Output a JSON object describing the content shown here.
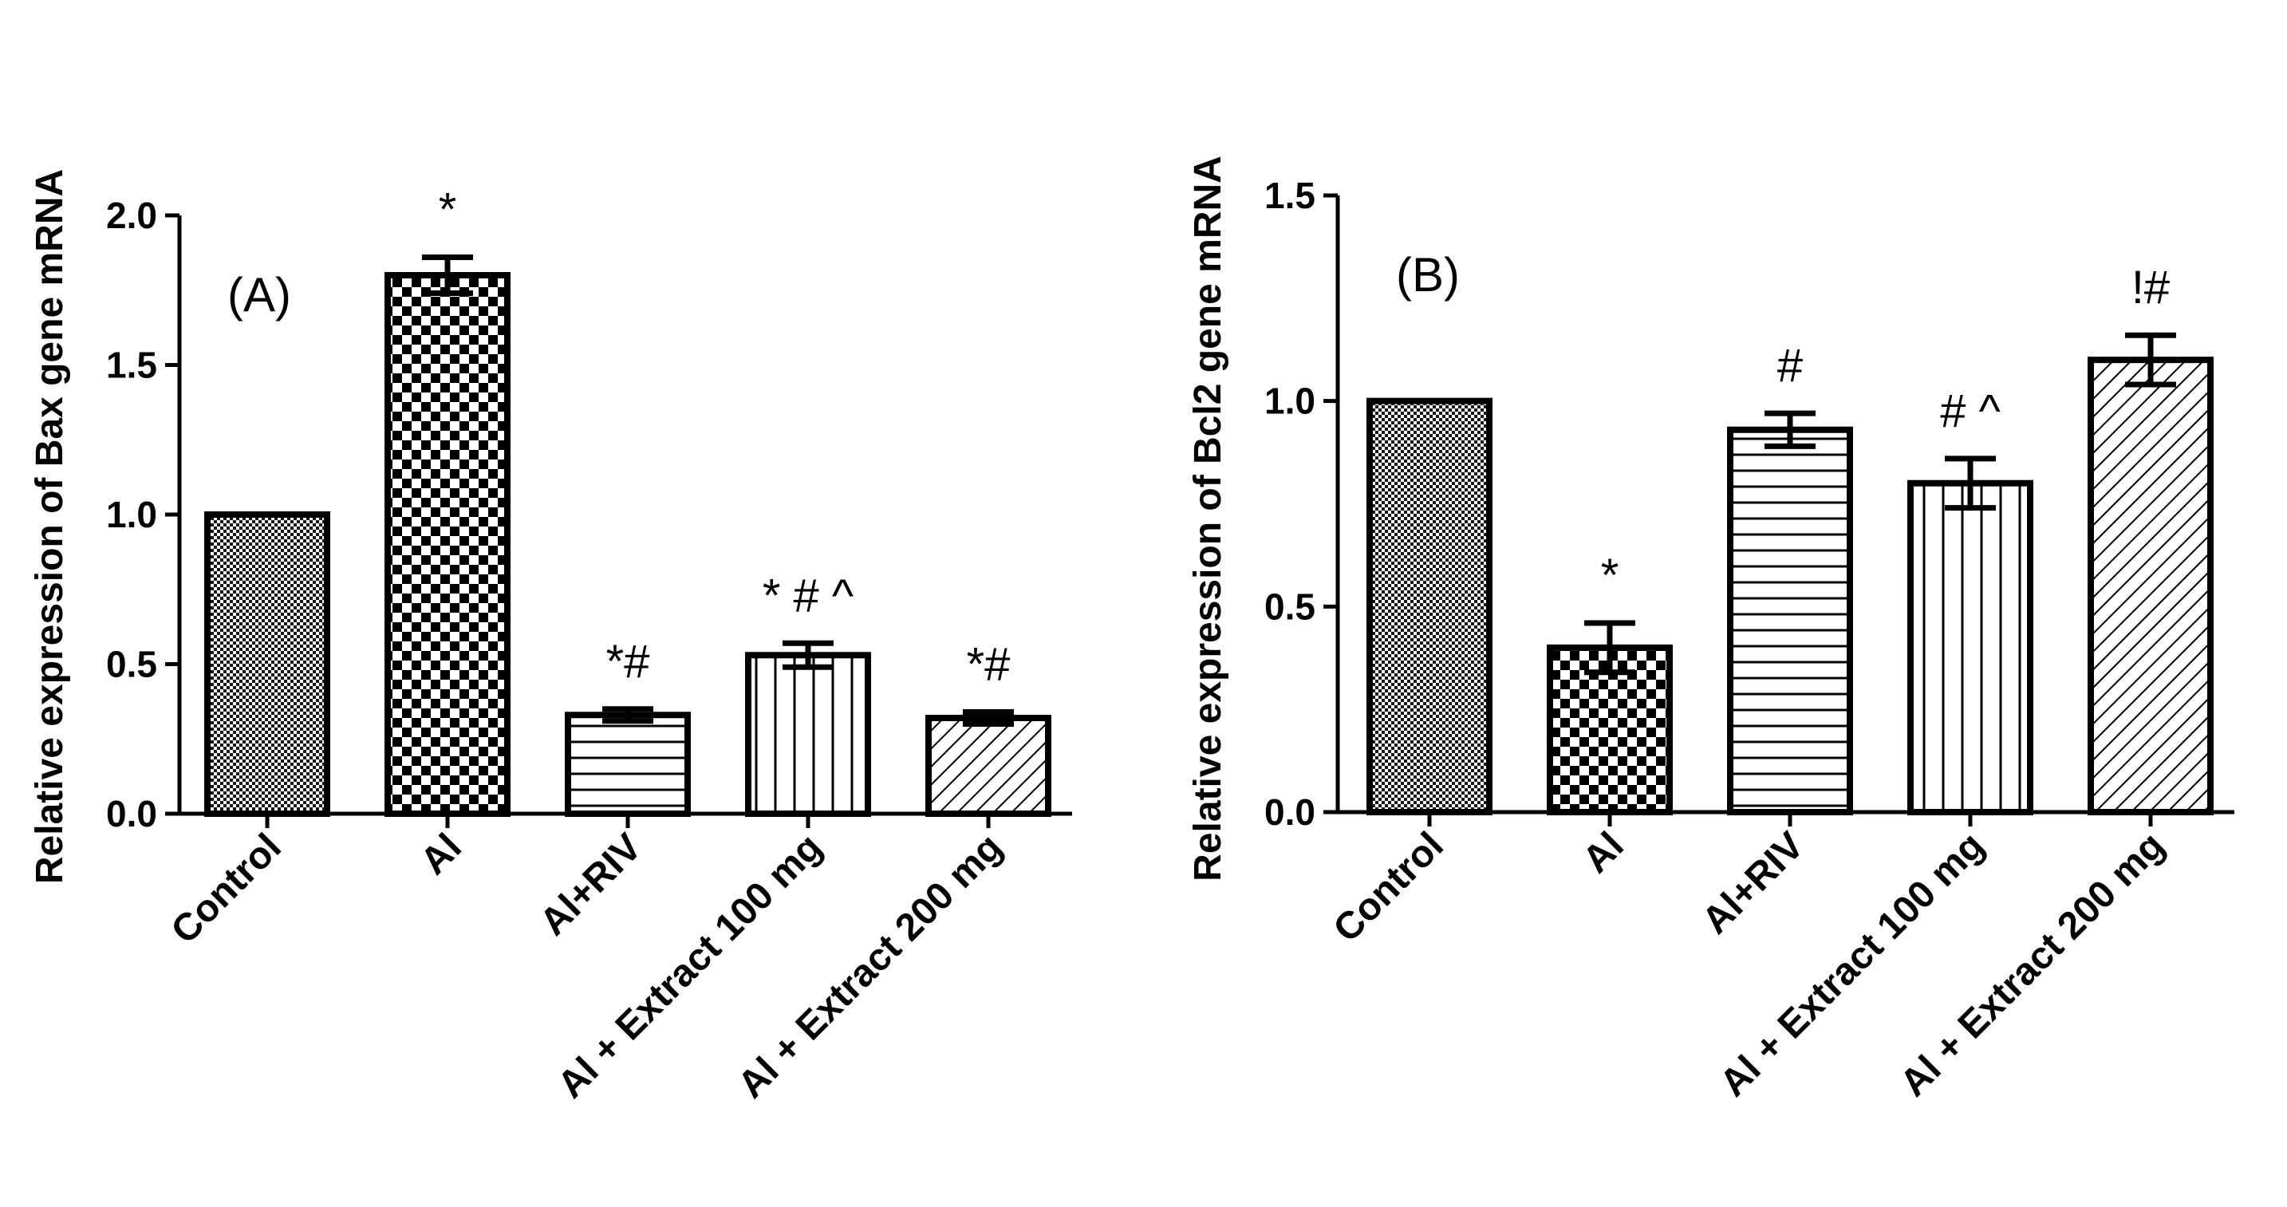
{
  "chart_data": [
    {
      "type": "bar",
      "panel_label": "(A)",
      "ylabel": "Relative expression of Bax gene mRNA",
      "ylim": [
        0,
        2.0
      ],
      "yticks": [
        0.0,
        0.5,
        1.0,
        1.5,
        2.0
      ],
      "ytick_labels": [
        "0.0",
        "0.5",
        "1.0",
        "1.5",
        "2.0"
      ],
      "categories": [
        "Control",
        "Al",
        "Al+RIV",
        "Al + Extract 100 mg",
        "Al + Extract 200 mg"
      ],
      "values": [
        1.0,
        1.8,
        0.33,
        0.53,
        0.32
      ],
      "errors": [
        0.0,
        0.06,
        0.02,
        0.04,
        0.02
      ],
      "patterns": [
        "fine-checker",
        "checker",
        "hlines",
        "vlines",
        "diagonal"
      ],
      "annotations": [
        "",
        "*",
        "*#",
        "* # ^",
        "*#"
      ]
    },
    {
      "type": "bar",
      "panel_label": "(B)",
      "ylabel": "Relative expression of Bcl2 gene mRNA",
      "ylim": [
        0,
        1.5
      ],
      "yticks": [
        0.0,
        0.5,
        1.0,
        1.5
      ],
      "ytick_labels": [
        "0.0",
        "0.5",
        "1.0",
        "1.5"
      ],
      "categories": [
        "Control",
        "Al",
        "Al+RIV",
        "Al + Extract 100 mg",
        "Al + Extract 200 mg"
      ],
      "values": [
        1.0,
        0.4,
        0.93,
        0.8,
        1.1
      ],
      "errors": [
        0.0,
        0.06,
        0.04,
        0.06,
        0.06
      ],
      "patterns": [
        "fine-checker",
        "checker",
        "hlines",
        "vlines",
        "diagonal"
      ],
      "annotations": [
        "",
        "*",
        "#",
        "# ^",
        "!#"
      ]
    }
  ]
}
